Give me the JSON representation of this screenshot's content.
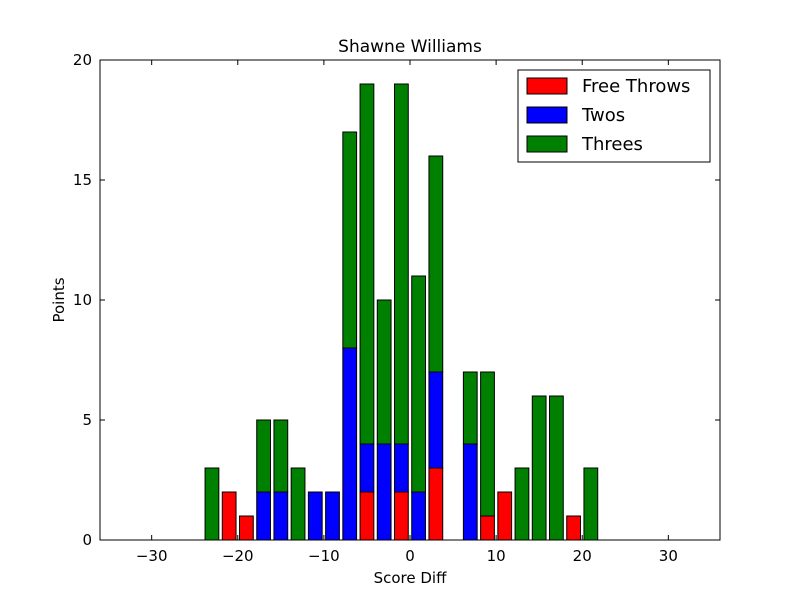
{
  "chart_data": {
    "type": "bar",
    "stacked": true,
    "title": "Shawne Williams",
    "xlabel": "Score Diff",
    "ylabel": "Points",
    "xlim": [
      -36,
      36
    ],
    "ylim": [
      0,
      20
    ],
    "xticks": [
      -30,
      -20,
      -10,
      0,
      10,
      20,
      30
    ],
    "yticks": [
      0,
      5,
      10,
      15,
      20
    ],
    "legend_position": "top-right",
    "x": [
      -35,
      -33,
      -31,
      -29,
      -27,
      -25,
      -23,
      -21,
      -19,
      -17,
      -15,
      -13,
      -11,
      -9,
      -7,
      -5,
      -3,
      -1,
      1,
      3,
      5,
      7,
      9,
      11,
      13,
      15,
      17,
      19,
      21,
      23,
      25,
      27,
      29,
      31,
      33,
      35
    ],
    "series": [
      {
        "name": "Free Throws",
        "color": "#ff0000",
        "values": [
          0,
          0,
          0,
          0,
          0,
          0,
          0,
          2,
          1,
          0,
          0,
          0,
          0,
          0,
          0,
          2,
          0,
          2,
          0,
          3,
          0,
          0,
          1,
          2,
          0,
          0,
          0,
          1,
          0,
          0,
          0,
          0,
          0,
          0,
          0,
          0
        ]
      },
      {
        "name": "Twos",
        "color": "#0000ff",
        "values": [
          0,
          0,
          0,
          0,
          0,
          0,
          0,
          0,
          0,
          2,
          2,
          0,
          2,
          2,
          8,
          2,
          4,
          2,
          2,
          4,
          0,
          4,
          0,
          0,
          0,
          0,
          0,
          0,
          0,
          0,
          0,
          0,
          0,
          0,
          0,
          0
        ]
      },
      {
        "name": "Threes",
        "color": "#008000",
        "values": [
          0,
          0,
          0,
          0,
          0,
          0,
          3,
          0,
          0,
          3,
          3,
          3,
          0,
          0,
          9,
          15,
          6,
          15,
          9,
          9,
          0,
          3,
          6,
          0,
          3,
          6,
          6,
          0,
          3,
          0,
          0,
          0,
          0,
          0,
          0,
          0
        ]
      }
    ]
  }
}
